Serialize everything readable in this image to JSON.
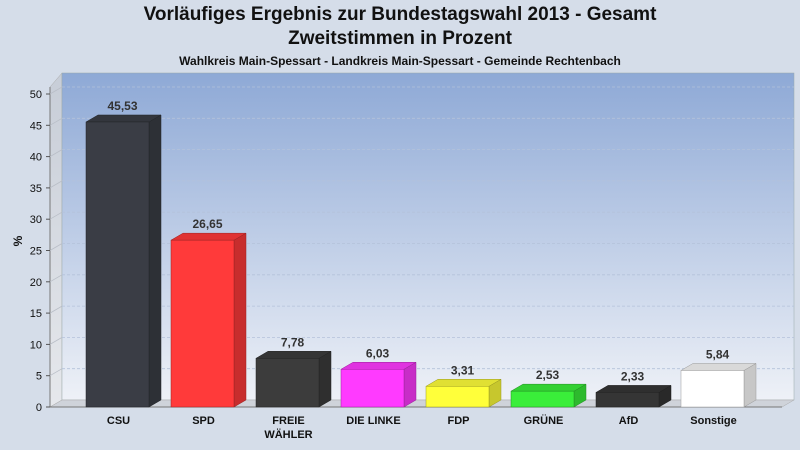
{
  "header": {
    "title_line1": "Vorläufiges Ergebnis zur Bundestagswahl 2013 - Gesamt",
    "title_line2": "Zweitstimmen in Prozent",
    "subtitle": "Wahlkreis Main-Spessart - Landkreis Main-Spessart - Gemeinde Rechtenbach"
  },
  "chart_data": {
    "type": "bar",
    "title": "Vorläufiges Ergebnis zur Bundestagswahl 2013 - Gesamt",
    "subtitle": "Zweitstimmen in Prozent",
    "ylabel": "%",
    "ylim": [
      0,
      50
    ],
    "yticks": [
      0,
      5,
      10,
      15,
      20,
      25,
      30,
      35,
      40,
      45,
      50
    ],
    "grid": true,
    "categories": [
      "CSU",
      "SPD",
      "FREIE WÄHLER",
      "DIE LINKE",
      "FDP",
      "GRÜNE",
      "AfD",
      "Sonstige"
    ],
    "category_lines": [
      [
        "CSU"
      ],
      [
        "SPD"
      ],
      [
        "FREIE",
        "WÄHLER"
      ],
      [
        "DIE LINKE"
      ],
      [
        "FDP"
      ],
      [
        "GRÜNE"
      ],
      [
        "AfD"
      ],
      [
        "Sonstige"
      ]
    ],
    "values": [
      45.53,
      26.65,
      7.78,
      6.03,
      3.31,
      2.53,
      2.33,
      5.84
    ],
    "value_labels": [
      "45,53",
      "26,65",
      "7,78",
      "6,03",
      "3,31",
      "2,53",
      "2,33",
      "5,84"
    ],
    "colors": [
      "#3a3d45",
      "#ff3a3a",
      "#3c3c3c",
      "#ff3aff",
      "#ffff3a",
      "#3aee3a",
      "#353535",
      "#ffffff"
    ]
  }
}
